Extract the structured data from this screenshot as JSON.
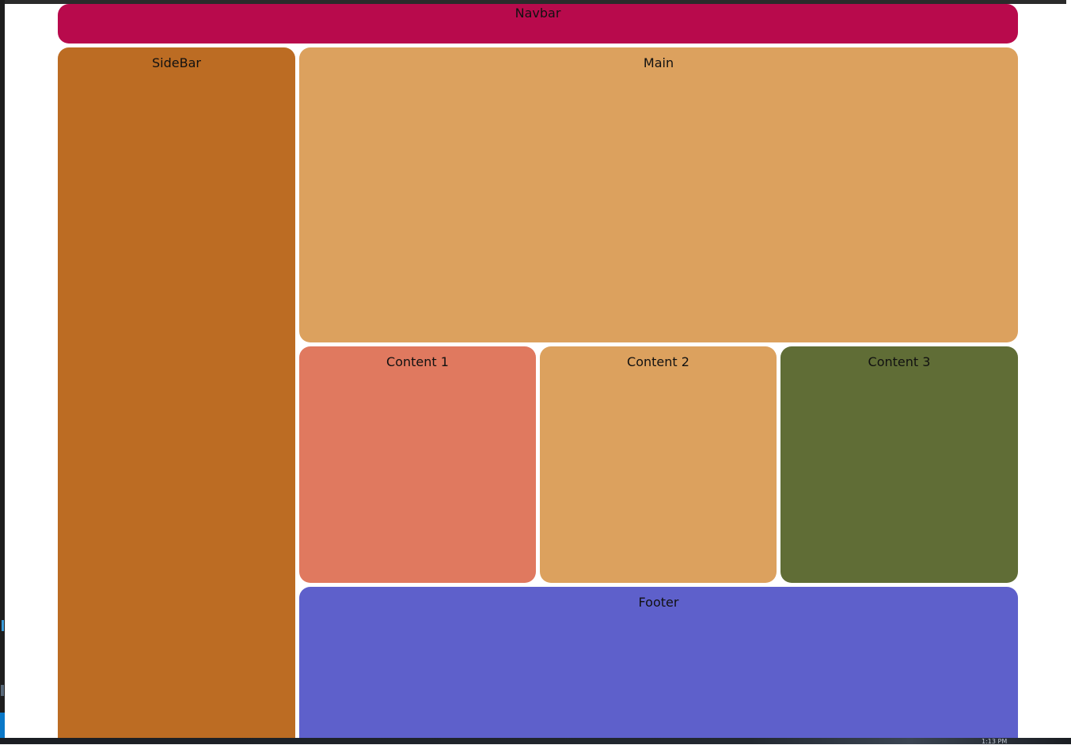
{
  "layout": {
    "navbar": {
      "label": "Navbar",
      "color": "#b80a4c"
    },
    "sidebar": {
      "label": "SideBar",
      "color": "#bc6c23"
    },
    "main": {
      "label": "Main",
      "color": "#dca15e"
    },
    "content": [
      {
        "label": "Content 1",
        "color": "#e0795f"
      },
      {
        "label": "Content 2",
        "color": "#dca15e"
      },
      {
        "label": "Content 3",
        "color": "#606d36"
      }
    ],
    "footer": {
      "label": "Footer",
      "color": "#5e60cb"
    }
  },
  "taskbar": {
    "clock": "1:13 PM"
  }
}
